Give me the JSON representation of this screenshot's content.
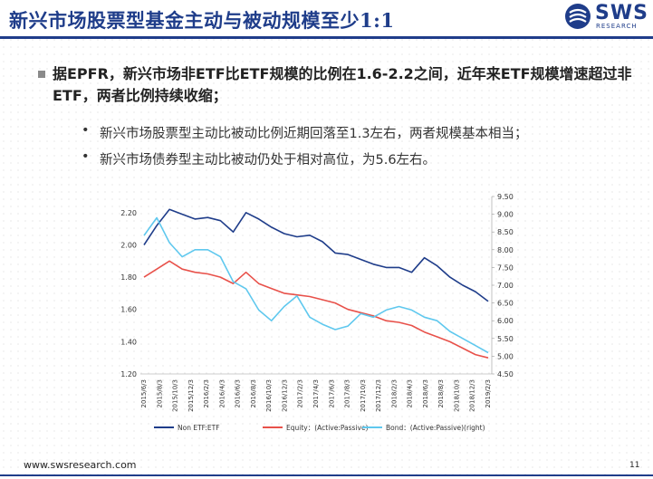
{
  "header": {
    "title": "新兴市场股票型基金主动与被动规模至少1:1",
    "logo_text": "SWS",
    "logo_sub": "RESEARCH",
    "logo_icon": "sws-logo-icon"
  },
  "bullets": {
    "main": "据EPFR，新兴市场非ETF比ETF规模的比例在1.6-2.2之间，近年来ETF规模增速超过非ETF，两者比例持续收缩；",
    "sub1": "新兴市场股票型主动比被动比例近期回落至1.3左右，两者规模基本相当；",
    "sub2": "新兴市场债券型主动比被动仍处于相对高位，为5.6左右。"
  },
  "footer": {
    "url": "www.swsresearch.com",
    "page": "11"
  },
  "colors": {
    "brand": "#1f3d8a",
    "non_etf": "#1f3d8a",
    "equity": "#e8514a",
    "bond": "#5fc8ee"
  },
  "chart_data": {
    "type": "line",
    "x_ticks": [
      "2015/6/3",
      "2015/8/3",
      "2015/10/3",
      "2015/12/3",
      "2016/2/3",
      "2016/4/3",
      "2016/6/3",
      "2016/8/3",
      "2016/10/3",
      "2016/12/3",
      "2017/2/3",
      "2017/4/3",
      "2017/6/3",
      "2017/8/3",
      "2017/10/3",
      "2017/12/3",
      "2018/2/3",
      "2018/4/3",
      "2018/6/3",
      "2018/8/3",
      "2018/10/3",
      "2018/12/3",
      "2019/2/3"
    ],
    "left_axis": {
      "min": 1.2,
      "max": 2.3,
      "ticks": [
        "1.20",
        "1.40",
        "1.60",
        "1.80",
        "2.00",
        "2.20"
      ]
    },
    "right_axis": {
      "min": 4.5,
      "max": 9.5,
      "ticks": [
        "4.50",
        "5.00",
        "5.50",
        "6.00",
        "6.50",
        "7.00",
        "7.50",
        "8.00",
        "8.50",
        "9.00",
        "9.50"
      ]
    },
    "legend": [
      "Non ETF:ETF",
      "Equity：(Active:Passive)",
      "Bond：(Active:Passive)(right)"
    ],
    "legend_position": "bottom",
    "series": [
      {
        "name": "Non ETF:ETF",
        "axis": "left",
        "values": [
          2.0,
          2.12,
          2.22,
          2.19,
          2.16,
          2.17,
          2.15,
          2.08,
          2.2,
          2.16,
          2.11,
          2.07,
          2.05,
          2.06,
          2.02,
          1.95,
          1.94,
          1.91,
          1.88,
          1.86,
          1.86,
          1.83,
          1.92,
          1.87,
          1.8,
          1.75,
          1.71,
          1.65
        ]
      },
      {
        "name": "Equity：(Active:Passive)",
        "axis": "left",
        "values": [
          1.8,
          1.85,
          1.9,
          1.85,
          1.83,
          1.82,
          1.8,
          1.76,
          1.83,
          1.76,
          1.73,
          1.7,
          1.69,
          1.68,
          1.66,
          1.64,
          1.6,
          1.58,
          1.56,
          1.53,
          1.52,
          1.5,
          1.46,
          1.43,
          1.4,
          1.36,
          1.32,
          1.3
        ]
      },
      {
        "name": "Bond：(Active:Passive)(right)",
        "axis": "right",
        "values": [
          8.4,
          8.9,
          8.2,
          7.8,
          8.0,
          8.0,
          7.8,
          7.1,
          6.9,
          6.3,
          6.0,
          6.4,
          6.7,
          6.1,
          5.9,
          5.75,
          5.85,
          6.2,
          6.1,
          6.3,
          6.4,
          6.3,
          6.1,
          6.0,
          5.7,
          5.5,
          5.3,
          5.1
        ]
      }
    ]
  }
}
